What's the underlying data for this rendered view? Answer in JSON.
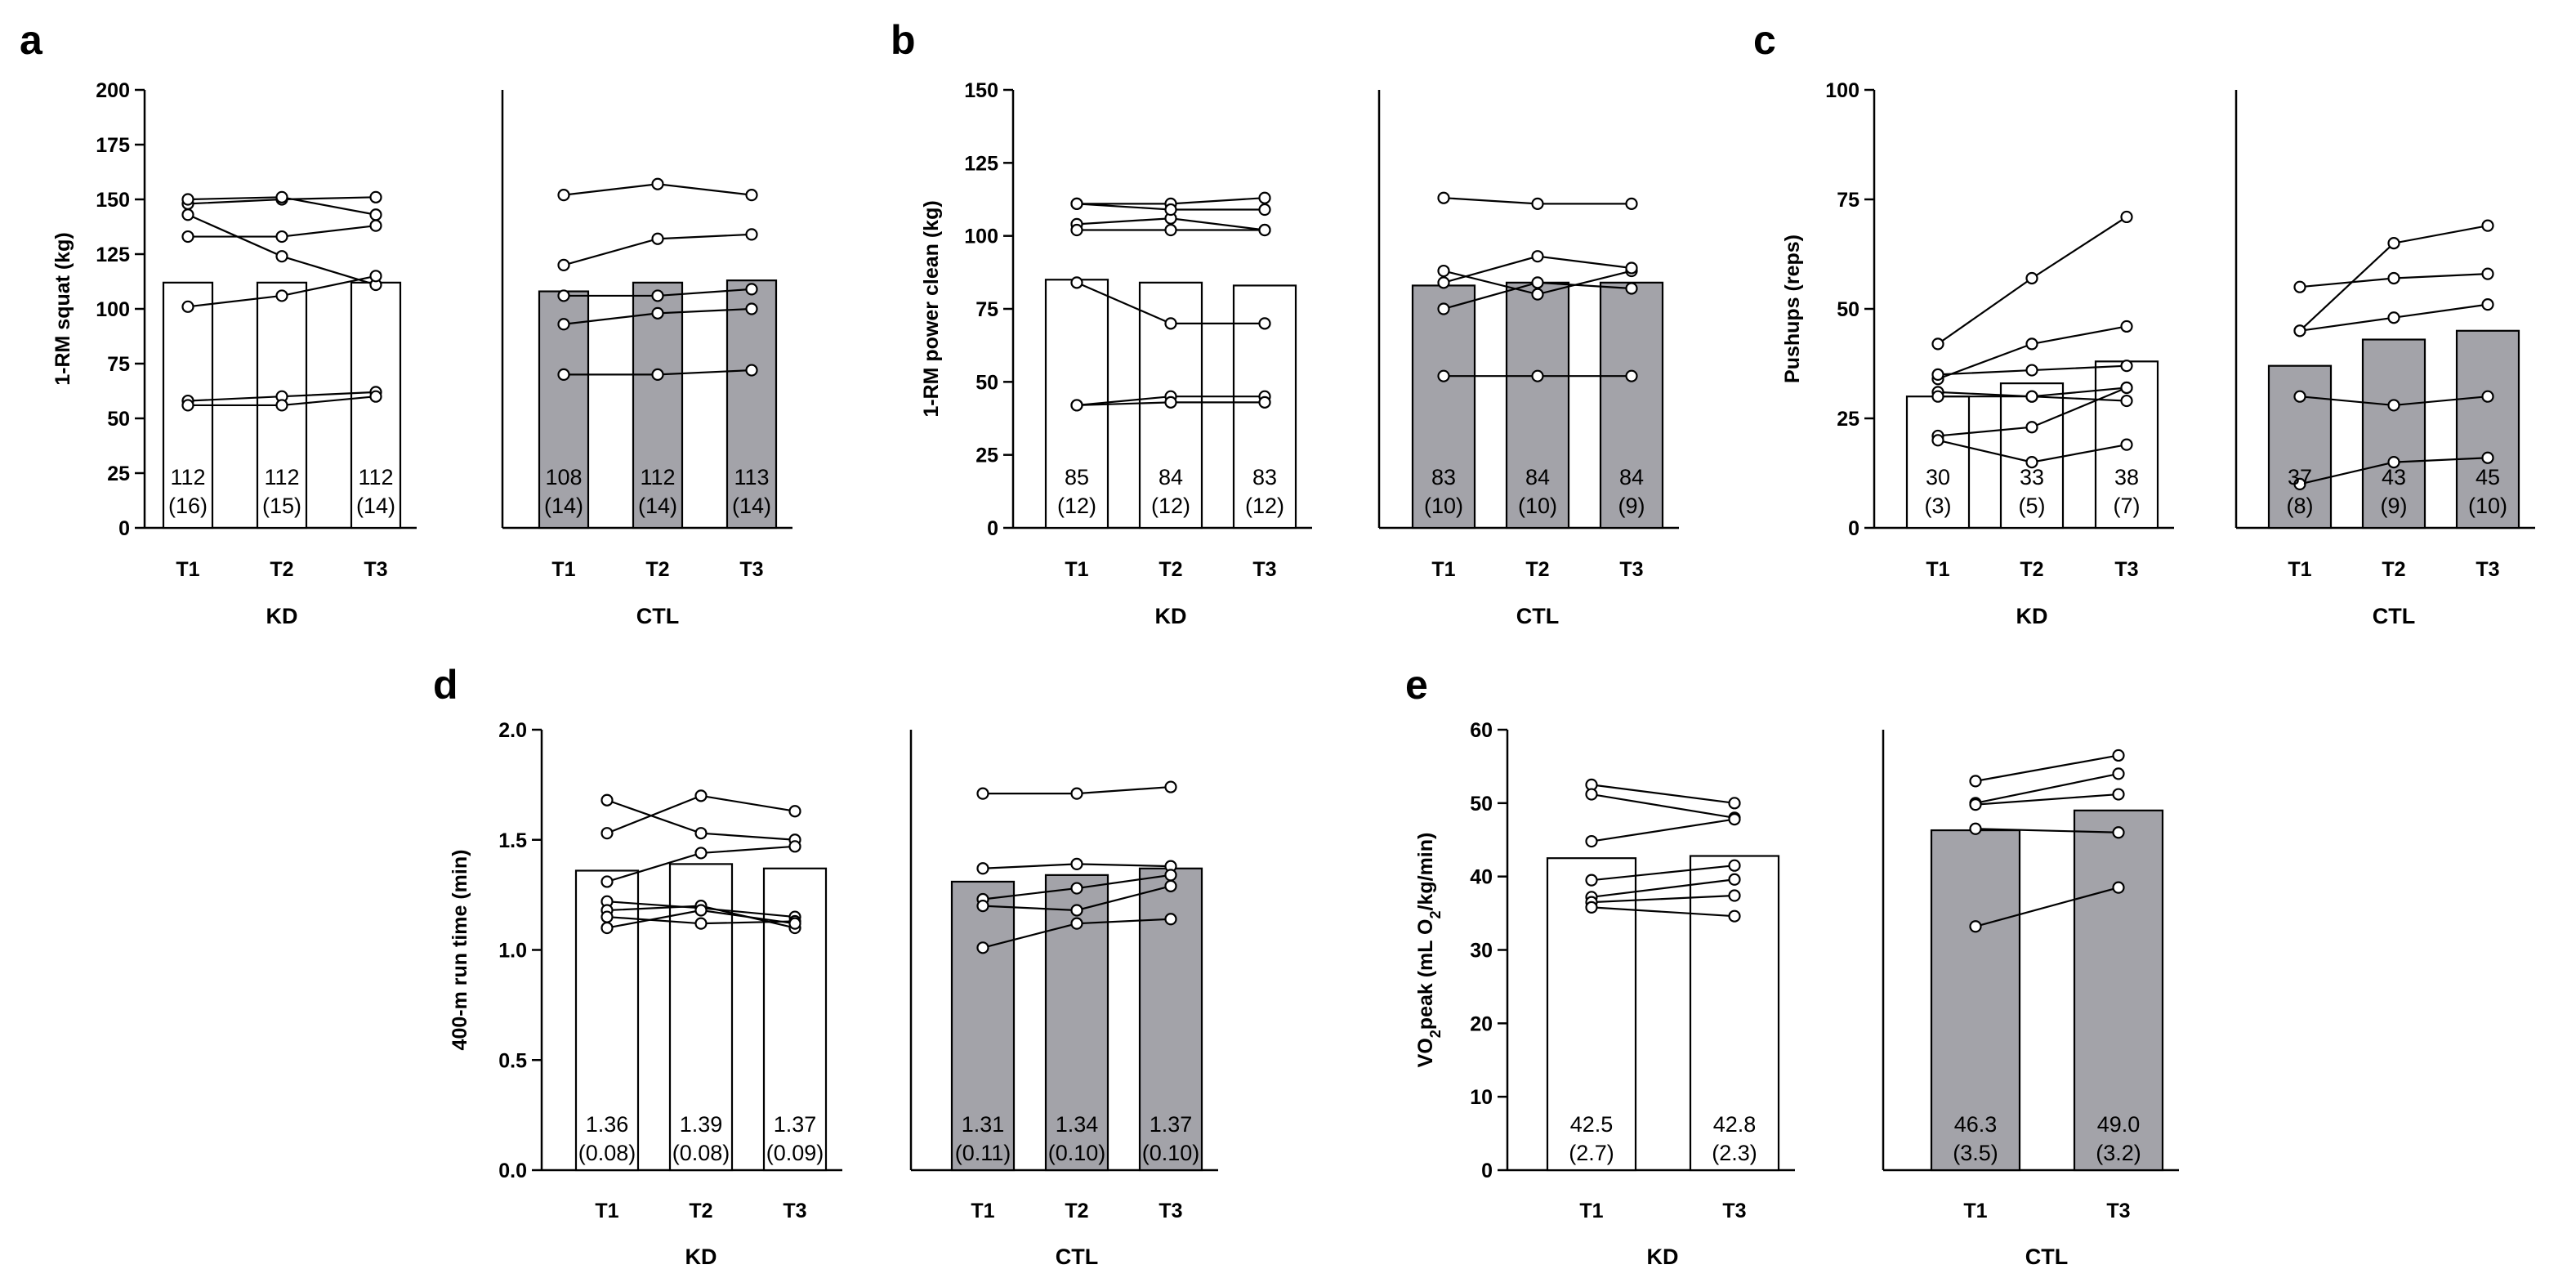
{
  "chart_data": [
    {
      "panel": "a",
      "type": "bar",
      "ylabel": "1-RM squat (kg)",
      "ylim": [
        0,
        200
      ],
      "yticks": [
        0,
        25,
        50,
        75,
        100,
        125,
        150,
        175,
        200
      ],
      "groups": [
        {
          "name": "KD",
          "fill": "#ffffff",
          "categories": [
            "T1",
            "T2",
            "T3"
          ],
          "means": [
            112,
            112,
            112
          ],
          "labels": [
            "112",
            "112",
            "112"
          ],
          "sds": [
            "(16)",
            "(15)",
            "(14)"
          ],
          "subjects": [
            [
              148,
              150,
              151
            ],
            [
              143,
              124,
              111
            ],
            [
              133,
              133,
              138
            ],
            [
              150,
              151,
              143
            ],
            [
              101,
              106,
              115
            ],
            [
              58,
              60,
              62
            ],
            [
              56,
              56,
              60
            ]
          ]
        },
        {
          "name": "CTL",
          "fill": "#a3a3a9",
          "categories": [
            "T1",
            "T2",
            "T3"
          ],
          "means": [
            108,
            112,
            113
          ],
          "labels": [
            "108",
            "112",
            "113"
          ],
          "sds": [
            "(14)",
            "(14)",
            "(14)"
          ],
          "subjects": [
            [
              152,
              157,
              152
            ],
            [
              120,
              132,
              134
            ],
            [
              106,
              106,
              109
            ],
            [
              93,
              98,
              100
            ],
            [
              70,
              70,
              72
            ]
          ]
        }
      ]
    },
    {
      "panel": "b",
      "type": "bar",
      "ylabel": "1-RM power clean (kg)",
      "ylim": [
        0,
        150
      ],
      "yticks": [
        0,
        25,
        50,
        75,
        100,
        125,
        150
      ],
      "groups": [
        {
          "name": "KD",
          "fill": "#ffffff",
          "categories": [
            "T1",
            "T2",
            "T3"
          ],
          "means": [
            85,
            84,
            83
          ],
          "labels": [
            "85",
            "84",
            "83"
          ],
          "sds": [
            "(12)",
            "(12)",
            "(12)"
          ],
          "subjects": [
            [
              111,
              111,
              113
            ],
            [
              104,
              106,
              102
            ],
            [
              102,
              102,
              102
            ],
            [
              111,
              109,
              109
            ],
            [
              84,
              70,
              70
            ],
            [
              42,
              45,
              45
            ],
            [
              42,
              43,
              43
            ]
          ]
        },
        {
          "name": "CTL",
          "fill": "#a3a3a9",
          "categories": [
            "T1",
            "T2",
            "T3"
          ],
          "means": [
            83,
            84,
            84
          ],
          "labels": [
            "83",
            "84",
            "84"
          ],
          "sds": [
            "(10)",
            "(10)",
            "(9)"
          ],
          "subjects": [
            [
              113,
              111,
              111
            ],
            [
              88,
              80,
              88
            ],
            [
              84,
              93,
              89
            ],
            [
              75,
              84,
              82
            ],
            [
              52,
              52,
              52
            ]
          ]
        }
      ]
    },
    {
      "panel": "c",
      "type": "bar",
      "ylabel": "Pushups (reps)",
      "ylim": [
        0,
        100
      ],
      "yticks": [
        0,
        25,
        50,
        75,
        100
      ],
      "groups": [
        {
          "name": "KD",
          "fill": "#ffffff",
          "categories": [
            "T1",
            "T2",
            "T3"
          ],
          "means": [
            30,
            33,
            38
          ],
          "labels": [
            "30",
            "33",
            "38"
          ],
          "sds": [
            "(3)",
            "(5)",
            "(7)"
          ],
          "subjects": [
            [
              42,
              57,
              71
            ],
            [
              34,
              42,
              46
            ],
            [
              35,
              36,
              37
            ],
            [
              31,
              30,
              32
            ],
            [
              30,
              30,
              29
            ],
            [
              21,
              23,
              32
            ],
            [
              20,
              15,
              19
            ]
          ]
        },
        {
          "name": "CTL",
          "fill": "#a3a3a9",
          "categories": [
            "T1",
            "T2",
            "T3"
          ],
          "means": [
            37,
            43,
            45
          ],
          "labels": [
            "37",
            "43",
            "45"
          ],
          "sds": [
            "(8)",
            "(9)",
            "(10)"
          ],
          "subjects": [
            [
              55,
              57,
              58
            ],
            [
              45,
              65,
              69
            ],
            [
              45,
              48,
              51
            ],
            [
              30,
              28,
              30
            ],
            [
              10,
              15,
              16
            ]
          ]
        }
      ]
    },
    {
      "panel": "d",
      "type": "bar",
      "ylabel": "400-m run time (min)",
      "ylim": [
        0,
        2.0
      ],
      "yticks": [
        0.0,
        0.5,
        1.0,
        1.5,
        2.0
      ],
      "yticklabels": [
        "0.0",
        "0.5",
        "1.0",
        "1.5",
        "2.0"
      ],
      "groups": [
        {
          "name": "KD",
          "fill": "#ffffff",
          "categories": [
            "T1",
            "T2",
            "T3"
          ],
          "means": [
            1.36,
            1.39,
            1.37
          ],
          "labels": [
            "1.36",
            "1.39",
            "1.37"
          ],
          "sds": [
            "(0.08)",
            "(0.08)",
            "(0.09)"
          ],
          "subjects": [
            [
              1.68,
              1.53,
              1.5
            ],
            [
              1.53,
              1.7,
              1.63
            ],
            [
              1.31,
              1.44,
              1.47
            ],
            [
              1.22,
              1.19,
              1.15
            ],
            [
              1.18,
              1.2,
              1.1
            ],
            [
              1.15,
              1.12,
              1.13
            ],
            [
              1.1,
              1.18,
              1.12
            ]
          ]
        },
        {
          "name": "CTL",
          "fill": "#a3a3a9",
          "categories": [
            "T1",
            "T2",
            "T3"
          ],
          "means": [
            1.31,
            1.34,
            1.37
          ],
          "labels": [
            "1.31",
            "1.34",
            "1.37"
          ],
          "sds": [
            "(0.11)",
            "(0.10)",
            "(0.10)"
          ],
          "subjects": [
            [
              1.71,
              1.71,
              1.74
            ],
            [
              1.37,
              1.39,
              1.38
            ],
            [
              1.23,
              1.28,
              1.34
            ],
            [
              1.2,
              1.18,
              1.29
            ],
            [
              1.01,
              1.12,
              1.14
            ]
          ]
        }
      ]
    },
    {
      "panel": "e",
      "type": "bar",
      "ylabel_parts": [
        "VO",
        "2",
        "peak (mL O",
        "2",
        "/kg/min)"
      ],
      "ylim": [
        0,
        60
      ],
      "yticks": [
        0,
        10,
        20,
        30,
        40,
        50,
        60
      ],
      "groups": [
        {
          "name": "KD",
          "fill": "#ffffff",
          "categories": [
            "T1",
            "T3"
          ],
          "means": [
            42.5,
            42.8
          ],
          "labels": [
            "42.5",
            "42.8"
          ],
          "sds": [
            "(2.7)",
            "(2.3)"
          ],
          "subjects": [
            [
              52.5,
              50.0
            ],
            [
              51.2,
              48.0
            ],
            [
              44.8,
              47.8
            ],
            [
              39.5,
              41.5
            ],
            [
              37.2,
              39.6
            ],
            [
              36.5,
              37.4
            ],
            [
              35.8,
              34.6
            ]
          ]
        },
        {
          "name": "CTL",
          "fill": "#a3a3a9",
          "categories": [
            "T1",
            "T3"
          ],
          "means": [
            46.3,
            49.0
          ],
          "labels": [
            "46.3",
            "49.0"
          ],
          "sds": [
            "(3.5)",
            "(3.2)"
          ],
          "subjects": [
            [
              53.0,
              56.5
            ],
            [
              50.0,
              54.0
            ],
            [
              49.8,
              51.2
            ],
            [
              46.5,
              46.0
            ],
            [
              33.2,
              38.5
            ]
          ]
        }
      ]
    }
  ]
}
